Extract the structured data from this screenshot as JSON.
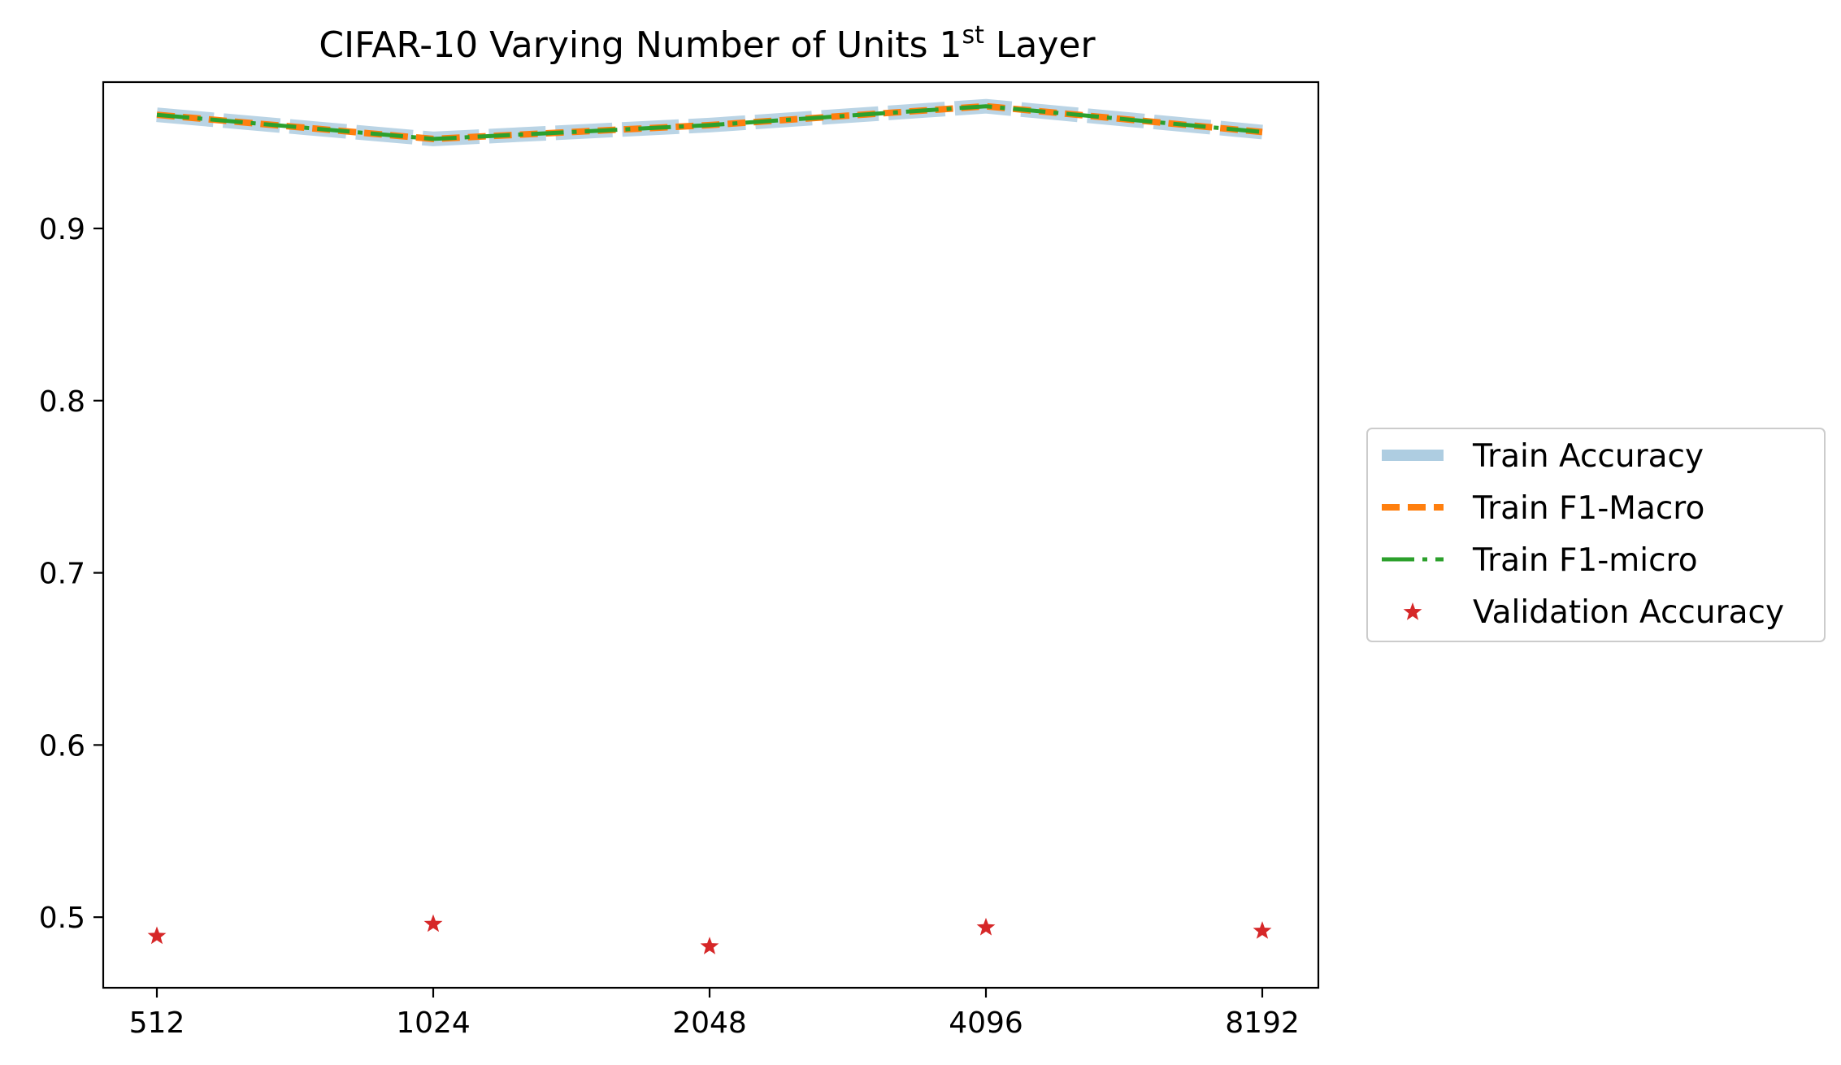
{
  "chart_data": {
    "type": "line",
    "title": "CIFAR-10 Varying Number of Units 1",
    "title_superscript": "st",
    "title_suffix": " Layer",
    "xlabel": "",
    "ylabel": "",
    "categories": [
      "512",
      "1024",
      "2048",
      "4096",
      "8192"
    ],
    "ylim": [
      0.459,
      0.985
    ],
    "yticks": [
      0.5,
      0.6,
      0.7,
      0.8,
      0.9
    ],
    "ytick_labels": [
      "0.5",
      "0.6",
      "0.7",
      "0.8",
      "0.9"
    ],
    "grid": false,
    "legend_position": "center-right outside",
    "series": [
      {
        "name": "Train Accuracy",
        "values": [
          0.966,
          0.952,
          0.96,
          0.971,
          0.956
        ],
        "color": "#aecde1",
        "style": "thick-solid"
      },
      {
        "name": "Train F1-Macro",
        "values": [
          0.966,
          0.952,
          0.96,
          0.971,
          0.956
        ],
        "color": "#ff7f0e",
        "style": "dashed"
      },
      {
        "name": "Train F1-micro",
        "values": [
          0.966,
          0.952,
          0.96,
          0.971,
          0.956
        ],
        "color": "#2ca02c",
        "style": "dashdot"
      },
      {
        "name": "Validation Accuracy",
        "values": [
          0.489,
          0.496,
          0.483,
          0.494,
          0.492
        ],
        "color": "#d62728",
        "style": "star-marker"
      }
    ]
  }
}
